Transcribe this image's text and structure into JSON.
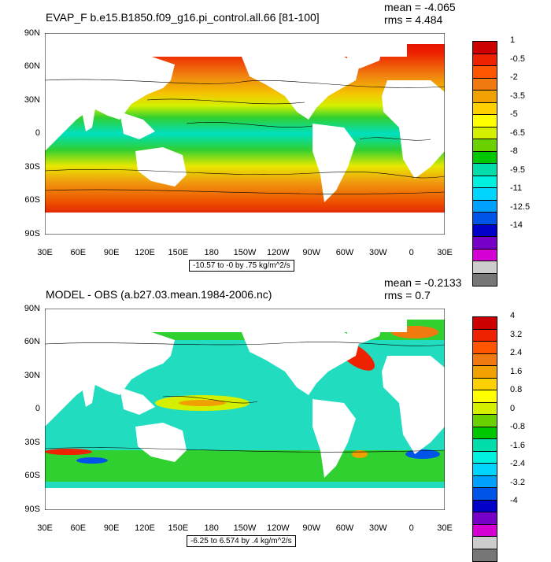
{
  "panel1": {
    "title": "EVAP_F b.e15.B1850.f09_g16.pi_control.all.66 [81-100]",
    "mean": "mean = -4.065",
    "rms": "rms = 4.484",
    "caption": "-10.57 to -0 by .75 kg/m^2/s",
    "lat_labels": [
      "90N",
      "60N",
      "30N",
      "0",
      "30S",
      "60S",
      "90S"
    ],
    "lon_labels": [
      "30E",
      "60E",
      "90E",
      "120E",
      "150E",
      "180",
      "150W",
      "120W",
      "90W",
      "60W",
      "30W",
      "0",
      "30E"
    ],
    "legend_labels": [
      "1",
      "-0.5",
      "-2",
      "-3.5",
      "-5",
      "-6.5",
      "-8",
      "-9.5",
      "-11",
      "-12.5",
      "-14"
    ],
    "legend_colors": [
      "#cc0000",
      "#ee2200",
      "#ff5500",
      "#f07a10",
      "#f0a000",
      "#ffd000",
      "#ffff00",
      "#d4f000",
      "#6ad000",
      "#00c800",
      "#00dcaa",
      "#00f0e0",
      "#00d4ff",
      "#00a0ff",
      "#0055e8",
      "#0000c8",
      "#7700c8",
      "#d400d4",
      "#cccccc",
      "#777777"
    ]
  },
  "panel2": {
    "title": "MODEL - OBS (a.b27.03.mean.1984-2006.nc)",
    "mean": "mean = -0.2133",
    "rms": "rms = 0.7",
    "caption": "-6.25 to 6.574 by .4 kg/m^2/s",
    "lat_labels": [
      "90N",
      "60N",
      "30N",
      "0",
      "30S",
      "60S",
      "90S"
    ],
    "lon_labels": [
      "30E",
      "60E",
      "90E",
      "120E",
      "150E",
      "180",
      "150W",
      "120W",
      "90W",
      "60W",
      "30W",
      "0",
      "30E"
    ],
    "legend_labels": [
      "4",
      "3.2",
      "2.4",
      "1.6",
      "0.8",
      "0",
      "-0.8",
      "-1.6",
      "-2.4",
      "-3.2",
      "-4"
    ],
    "legend_colors": [
      "#cc0000",
      "#ee2200",
      "#ff5500",
      "#f07a10",
      "#f0a000",
      "#ffd000",
      "#ffff00",
      "#d4f000",
      "#6ad000",
      "#00c800",
      "#00dcaa",
      "#00f0e0",
      "#00d4ff",
      "#00a0ff",
      "#0055e8",
      "#0000c8",
      "#7700c8",
      "#d400d4",
      "#cccccc",
      "#777777"
    ]
  }
}
